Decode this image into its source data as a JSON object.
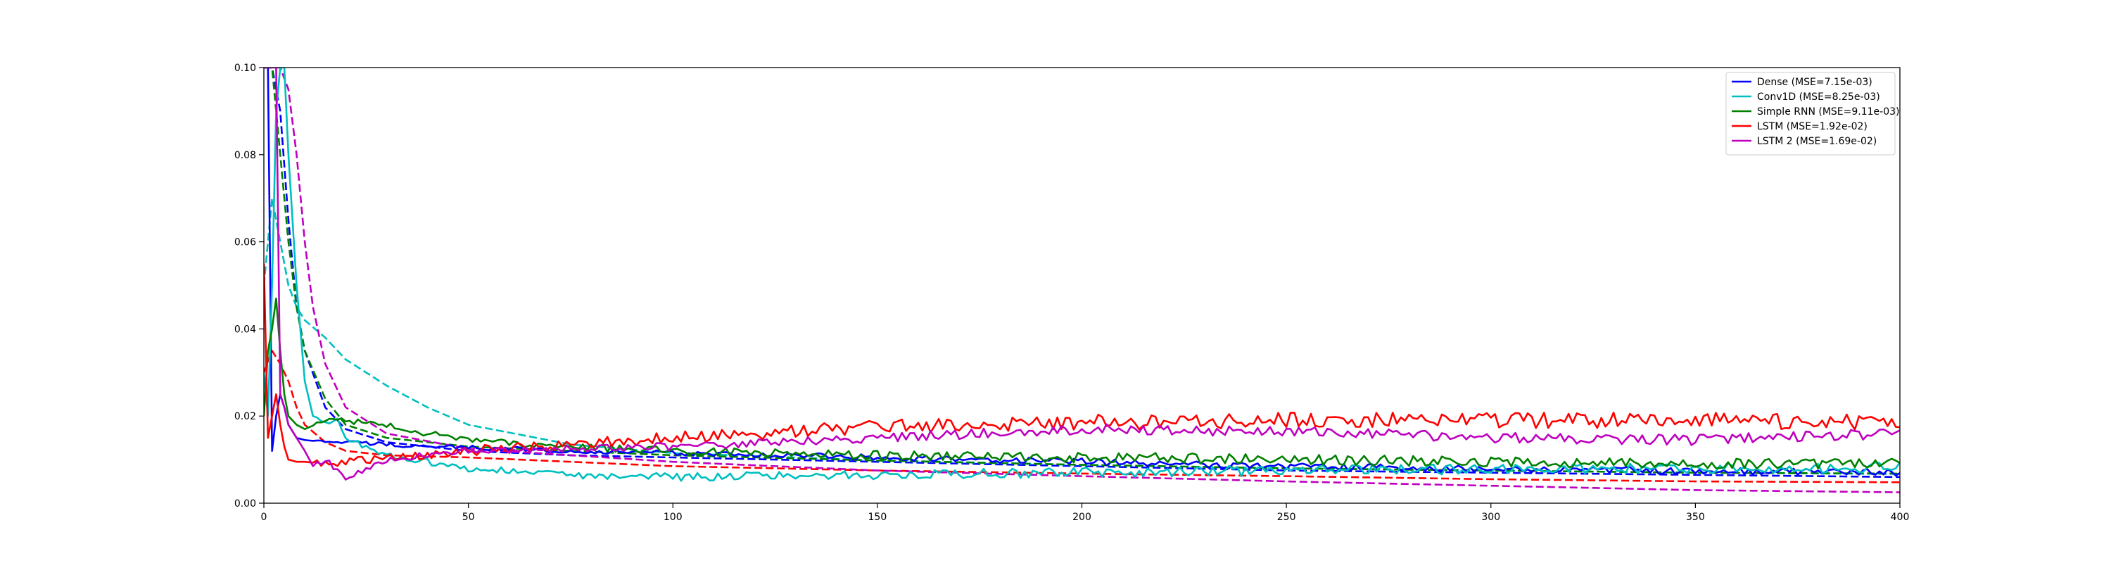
{
  "chart_data": {
    "type": "line",
    "title": "",
    "xlabel": "",
    "ylabel": "",
    "xlim": [
      0,
      400
    ],
    "ylim": [
      0,
      0.1
    ],
    "x_ticks": [
      0,
      50,
      100,
      150,
      200,
      250,
      300,
      350,
      400
    ],
    "x_tick_labels": [
      "0",
      "50",
      "100",
      "150",
      "200",
      "250",
      "300",
      "350",
      "400"
    ],
    "y_ticks": [
      0,
      0.02,
      0.04,
      0.06,
      0.08,
      0.1
    ],
    "y_tick_labels": [
      "0.00",
      "0.02",
      "0.04",
      "0.06",
      "0.08",
      "0.10"
    ],
    "grid": false,
    "legend_position": "top-right",
    "line_styles": {
      "solid": "validation",
      "dashed": "training"
    },
    "series": [
      {
        "name": "Dense (MSE=7.15e-03)",
        "color": "#0000ff",
        "solid": {
          "x": [
            0,
            1,
            2,
            3,
            4,
            5,
            6,
            8,
            10,
            15,
            20,
            30,
            40,
            50,
            75,
            100,
            150,
            200,
            250,
            300,
            350,
            400
          ],
          "y": [
            0.1,
            0.1,
            0.012,
            0.02,
            0.025,
            0.022,
            0.018,
            0.015,
            0.0145,
            0.014,
            0.014,
            0.0135,
            0.013,
            0.0128,
            0.012,
            0.0115,
            0.0105,
            0.0095,
            0.0085,
            0.0078,
            0.0074,
            0.0071
          ],
          "noise": 0.0008
        },
        "dashed": {
          "x": [
            0,
            2,
            4,
            6,
            8,
            10,
            15,
            20,
            30,
            50,
            75,
            100,
            150,
            200,
            250,
            300,
            350,
            400
          ],
          "y": [
            0.1,
            0.1,
            0.09,
            0.065,
            0.045,
            0.035,
            0.022,
            0.017,
            0.014,
            0.012,
            0.011,
            0.0105,
            0.0095,
            0.0085,
            0.0075,
            0.007,
            0.0065,
            0.006
          ]
        }
      },
      {
        "name": "Conv1D (MSE=8.25e-03)",
        "color": "#00bfbf",
        "solid": {
          "x": [
            0,
            1,
            2,
            3,
            4,
            5,
            6,
            8,
            10,
            12,
            15,
            18,
            20,
            25,
            30,
            40,
            50,
            75,
            100,
            150,
            200,
            250,
            300,
            350,
            400
          ],
          "y": [
            0.03,
            0.02,
            0.05,
            0.09,
            0.1,
            0.1,
            0.08,
            0.05,
            0.028,
            0.02,
            0.018,
            0.02,
            0.015,
            0.013,
            0.011,
            0.0095,
            0.008,
            0.0065,
            0.006,
            0.0065,
            0.007,
            0.0075,
            0.0078,
            0.008,
            0.0082
          ],
          "noise": 0.0012
        },
        "dashed": {
          "x": [
            0,
            2,
            4,
            6,
            8,
            10,
            15,
            20,
            30,
            40,
            50,
            75,
            100,
            150,
            200,
            250,
            300,
            350,
            400
          ],
          "y": [
            0.05,
            0.07,
            0.06,
            0.05,
            0.045,
            0.042,
            0.038,
            0.033,
            0.027,
            0.022,
            0.018,
            0.0135,
            0.0115,
            0.0098,
            0.0088,
            0.008,
            0.0075,
            0.007,
            0.0067
          ]
        }
      },
      {
        "name": "Simple RNN (MSE=9.11e-03)",
        "color": "#008000",
        "solid": {
          "x": [
            0,
            1,
            2,
            3,
            4,
            5,
            6,
            8,
            10,
            15,
            20,
            30,
            40,
            50,
            75,
            100,
            150,
            200,
            250,
            300,
            350,
            400
          ],
          "y": [
            0.02,
            0.035,
            0.04,
            0.047,
            0.035,
            0.025,
            0.02,
            0.018,
            0.017,
            0.019,
            0.019,
            0.018,
            0.016,
            0.0145,
            0.013,
            0.012,
            0.011,
            0.0105,
            0.01,
            0.0095,
            0.009,
            0.009
          ],
          "noise": 0.0012
        },
        "dashed": {
          "x": [
            0,
            2,
            4,
            6,
            8,
            10,
            15,
            20,
            30,
            50,
            75,
            100,
            150,
            200,
            250,
            300,
            350,
            400
          ],
          "y": [
            0.1,
            0.1,
            0.08,
            0.06,
            0.045,
            0.035,
            0.024,
            0.018,
            0.015,
            0.013,
            0.012,
            0.011,
            0.0098,
            0.0088,
            0.008,
            0.0075,
            0.007,
            0.0068
          ]
        }
      },
      {
        "name": "LSTM (MSE=1.92e-02)",
        "color": "#ff0000",
        "solid": {
          "x": [
            0,
            1,
            2,
            3,
            4,
            5,
            6,
            8,
            10,
            15,
            20,
            30,
            40,
            50,
            75,
            100,
            150,
            200,
            250,
            300,
            350,
            400
          ],
          "y": [
            0.055,
            0.015,
            0.02,
            0.025,
            0.018,
            0.013,
            0.01,
            0.0095,
            0.0095,
            0.009,
            0.0095,
            0.0105,
            0.011,
            0.012,
            0.0135,
            0.015,
            0.0175,
            0.0185,
            0.019,
            0.019,
            0.019,
            0.0185
          ],
          "noise": 0.0018
        },
        "dashed": {
          "x": [
            0,
            2,
            4,
            6,
            8,
            10,
            15,
            20,
            30,
            50,
            75,
            100,
            150,
            200,
            250,
            300,
            350,
            400
          ],
          "y": [
            0.03,
            0.035,
            0.032,
            0.028,
            0.022,
            0.018,
            0.014,
            0.012,
            0.011,
            0.0105,
            0.0095,
            0.0085,
            0.0075,
            0.0068,
            0.0062,
            0.0055,
            0.005,
            0.0048
          ]
        }
      },
      {
        "name": "LSTM 2 (MSE=1.69e-02)",
        "color": "#bf00bf",
        "solid": {
          "x": [
            0,
            2,
            3,
            4,
            5,
            6,
            8,
            10,
            12,
            15,
            20,
            25,
            30,
            40,
            50,
            75,
            100,
            150,
            200,
            250,
            300,
            350,
            400
          ],
          "y": [
            0.1,
            0.1,
            0.1,
            0.025,
            0.022,
            0.018,
            0.015,
            0.012,
            0.0085,
            0.01,
            0.006,
            0.0075,
            0.01,
            0.011,
            0.012,
            0.0125,
            0.013,
            0.015,
            0.017,
            0.0165,
            0.015,
            0.0145,
            0.016
          ],
          "noise": 0.0012
        },
        "dashed": {
          "x": [
            0,
            2,
            4,
            6,
            8,
            10,
            12,
            15,
            20,
            30,
            50,
            75,
            100,
            150,
            200,
            250,
            300,
            350,
            400
          ],
          "y": [
            0.1,
            0.1,
            0.1,
            0.095,
            0.08,
            0.06,
            0.045,
            0.032,
            0.022,
            0.016,
            0.0125,
            0.011,
            0.0095,
            0.0075,
            0.0062,
            0.005,
            0.004,
            0.003,
            0.0025
          ]
        }
      }
    ]
  }
}
